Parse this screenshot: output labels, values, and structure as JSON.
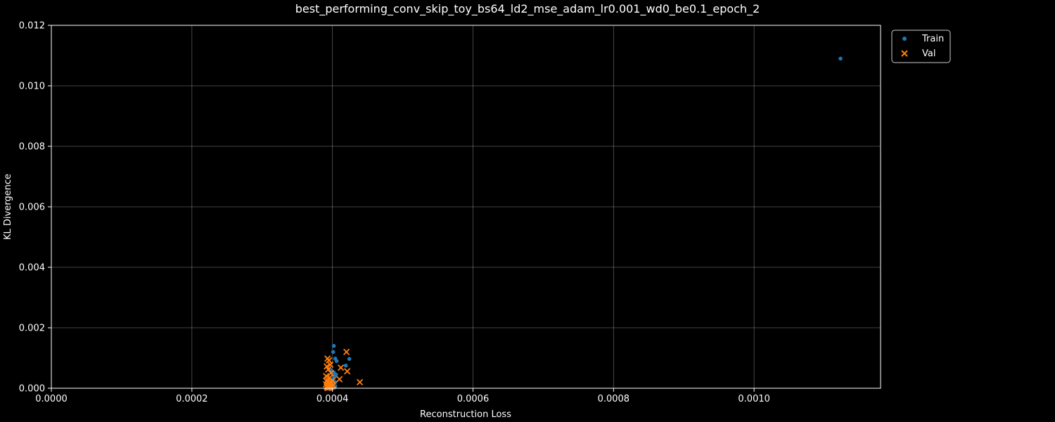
{
  "chart_data": {
    "type": "scatter",
    "title": "best_performing_conv_skip_toy_bs64_ld2_mse_adam_lr0.001_wd0_be0.1_epoch_2",
    "xlabel": "Reconstruction Loss",
    "ylabel": "KL Divergence",
    "xlim": [
      0,
      0.00118
    ],
    "ylim": [
      0,
      0.012
    ],
    "xticks": [
      "0.0000",
      "0.0002",
      "0.0004",
      "0.0006",
      "0.0008",
      "0.0010"
    ],
    "xtick_values": [
      0,
      0.0002,
      0.0004,
      0.0006,
      0.0008,
      0.001
    ],
    "yticks": [
      "0.000",
      "0.002",
      "0.004",
      "0.006",
      "0.008",
      "0.010",
      "0.012"
    ],
    "ytick_values": [
      0,
      0.002,
      0.004,
      0.006,
      0.008,
      0.01,
      0.012
    ],
    "grid": true,
    "legend_position": "outside-top-right",
    "series": [
      {
        "name": "Train",
        "marker": "circle",
        "color": "#1f77b4",
        "x": [
          0.001123,
          0.000402,
          0.000401,
          0.000404,
          0.000406,
          0.000424,
          0.000419,
          0.000398,
          0.000402,
          0.000405,
          0.000403,
          0.000401,
          0.000399,
          0.000397,
          0.000402,
          0.000404,
          0.000403,
          0.0004,
          0.000398,
          0.000396,
          0.000401,
          0.000399,
          0.000402,
          0.000404,
          0.000397,
          0.000395,
          0.0004,
          0.000403
        ],
        "y": [
          0.0109,
          0.0014,
          0.0012,
          0.00098,
          0.0009,
          0.00097,
          0.00075,
          0.0006,
          0.00052,
          0.00045,
          0.00038,
          0.00032,
          0.00028,
          0.00025,
          0.00022,
          0.0002,
          0.00018,
          0.00015,
          0.00013,
          0.00012,
          0.0001,
          9e-05,
          8e-05,
          7e-05,
          6e-05,
          5e-05,
          4e-05,
          3e-05
        ]
      },
      {
        "name": "Val",
        "marker": "x",
        "color": "#ff7f0e",
        "x": [
          0.00042,
          0.000393,
          0.000395,
          0.000397,
          0.000412,
          0.000421,
          0.000392,
          0.000394,
          0.000398,
          0.00041,
          0.000439,
          0.000391,
          0.000396,
          0.000393,
          0.0004,
          0.000392,
          0.000395,
          0.000398,
          0.000394,
          0.000391,
          0.000397,
          0.000401,
          0.000393,
          0.000396,
          0.000399,
          0.000392,
          0.000394,
          0.000397,
          0.000395,
          0.000393
        ],
        "y": [
          0.0012,
          0.00098,
          0.00092,
          0.00078,
          0.00068,
          0.00056,
          0.00072,
          0.00062,
          0.0005,
          0.0003,
          0.0002,
          0.0004,
          0.00035,
          0.00028,
          0.00025,
          0.00022,
          0.0002,
          0.00018,
          0.00015,
          0.00013,
          0.00012,
          0.0001,
          9e-05,
          8e-05,
          6e-05,
          5e-05,
          4e-05,
          3e-05,
          2e-05,
          1e-05
        ]
      }
    ]
  }
}
